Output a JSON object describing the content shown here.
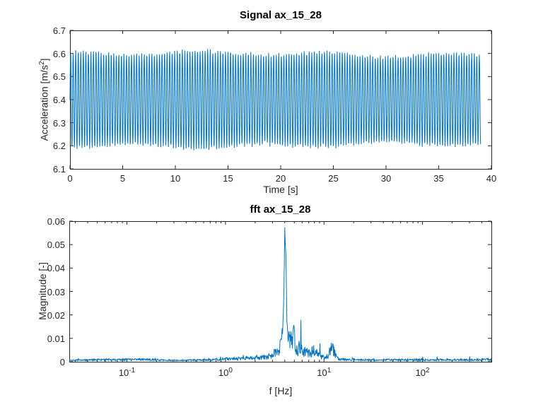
{
  "figure": {
    "background": "#ffffff",
    "line_color": "#0072BD",
    "axis_color": "#262626",
    "title_color": "#000000"
  },
  "chart_data": [
    {
      "type": "line",
      "title": "Signal ax_15_28",
      "xlabel": "Time [s]",
      "ylabel": "Acceleration [m/s²]",
      "ylabel_pre": "Acceleration [m/s",
      "ylabel_sup": "2",
      "ylabel_post": "]",
      "xscale": "linear",
      "xlim": [
        0,
        40
      ],
      "ylim": [
        6.1,
        6.7
      ],
      "xtick_labels": [
        "0",
        "5",
        "10",
        "15",
        "20",
        "25",
        "30",
        "35",
        "40"
      ],
      "xtick_values": [
        0,
        5,
        10,
        15,
        20,
        25,
        30,
        35,
        40
      ],
      "ytick_labels": [
        "6.1",
        "6.2",
        "6.3",
        "6.4",
        "6.5",
        "6.6",
        "6.7"
      ],
      "ytick_values": [
        6.1,
        6.2,
        6.3,
        6.4,
        6.5,
        6.6,
        6.7
      ],
      "grid": false,
      "signal": {
        "mean": 6.4,
        "amplitude": 0.2,
        "frequency_hz": 4.15,
        "duration_s": 39,
        "peak_level": 6.6,
        "trough_level": 6.2,
        "noise": 0.008
      }
    },
    {
      "type": "line",
      "title": "fft ax_15_28",
      "xlabel": "f [Hz]",
      "ylabel": "Magnitude [-]",
      "xscale": "log",
      "xlim": [
        0.026,
        500
      ],
      "ylim": [
        0,
        0.06
      ],
      "xtick_labels": [
        {
          "base": "10",
          "exp": "-1",
          "value": 0.1
        },
        {
          "base": "10",
          "exp": "0",
          "value": 1
        },
        {
          "base": "10",
          "exp": "1",
          "value": 10
        },
        {
          "base": "10",
          "exp": "2",
          "value": 100
        }
      ],
      "ytick_labels": [
        "0",
        "0.01",
        "0.02",
        "0.03",
        "0.04",
        "0.05",
        "0.06"
      ],
      "ytick_values": [
        0,
        0.01,
        0.02,
        0.03,
        0.04,
        0.05,
        0.06
      ],
      "grid": false,
      "peak": {
        "frequency_hz": 4.0,
        "magnitude": 0.0576
      },
      "envelope": [
        [
          0.026,
          0.0005
        ],
        [
          0.05,
          0.0008
        ],
        [
          0.08,
          0.0009
        ],
        [
          0.12,
          0.001
        ],
        [
          0.18,
          0.0009
        ],
        [
          0.25,
          0.0006
        ],
        [
          0.35,
          0.0005
        ],
        [
          0.5,
          0.0007
        ],
        [
          0.7,
          0.0009
        ],
        [
          1.0,
          0.0012
        ],
        [
          1.4,
          0.0015
        ],
        [
          1.9,
          0.0018
        ],
        [
          2.4,
          0.002
        ],
        [
          2.9,
          0.0028
        ],
        [
          3.3,
          0.0045
        ],
        [
          3.6,
          0.007
        ],
        [
          3.8,
          0.012
        ],
        [
          3.92,
          0.03
        ],
        [
          4.0,
          0.0576
        ],
        [
          4.1,
          0.048
        ],
        [
          4.2,
          0.018
        ],
        [
          4.35,
          0.009
        ],
        [
          4.5,
          0.012
        ],
        [
          4.7,
          0.008
        ],
        [
          4.95,
          0.0163
        ],
        [
          5.15,
          0.007
        ],
        [
          5.45,
          0.0055
        ],
        [
          5.75,
          0.0085
        ],
        [
          6.1,
          0.005
        ],
        [
          6.6,
          0.0042
        ],
        [
          7.2,
          0.0038
        ],
        [
          7.9,
          0.0055
        ],
        [
          8.3,
          0.0045
        ],
        [
          9.0,
          0.003
        ],
        [
          10.0,
          0.0022
        ],
        [
          11.0,
          0.0025
        ],
        [
          12.0,
          0.0078
        ],
        [
          12.8,
          0.0045
        ],
        [
          13.6,
          0.0015
        ],
        [
          15.0,
          0.001
        ],
        [
          18.0,
          0.0009
        ],
        [
          25.0,
          0.0008
        ],
        [
          40.0,
          0.0008
        ],
        [
          70.0,
          0.0008
        ],
        [
          120.0,
          0.0008
        ],
        [
          250.0,
          0.0008
        ],
        [
          400.0,
          0.0009
        ],
        [
          500.0,
          0.0011
        ]
      ]
    }
  ]
}
